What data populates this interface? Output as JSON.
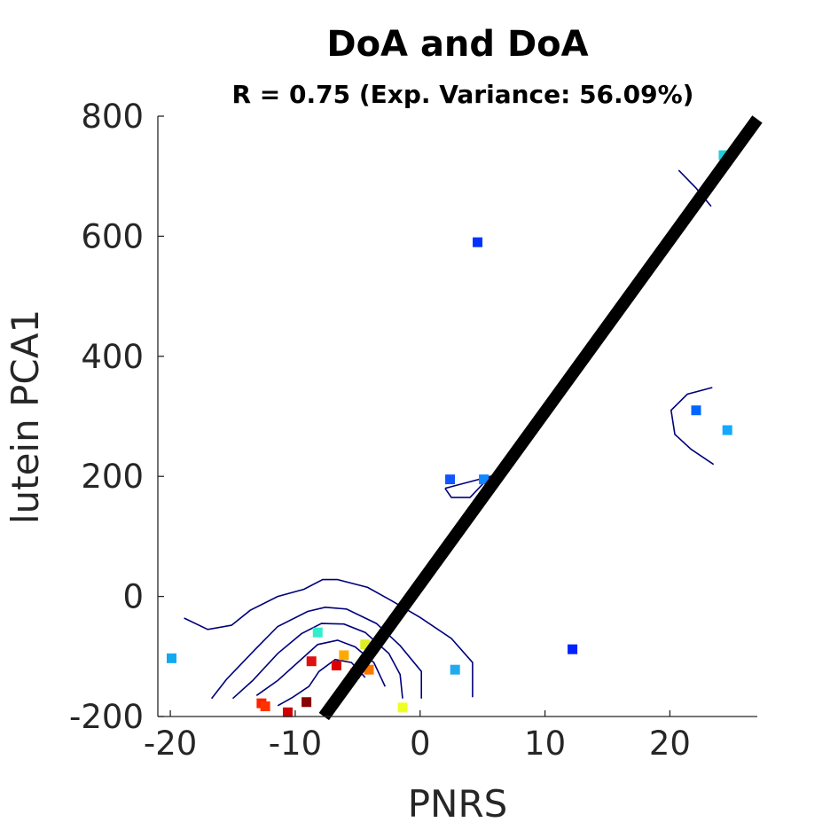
{
  "chart_data": {
    "type": "scatter",
    "title": "DoA and DoA",
    "subtitle": "R = 0.75 (Exp. Variance: 56.09%)",
    "xlabel": "PNRS",
    "ylabel": "lutein PCA1",
    "xlim": [
      -21,
      27
    ],
    "ylim": [
      -200,
      800
    ],
    "xticks": [
      "-20",
      "-10",
      "0",
      "10",
      "20"
    ],
    "xtick_values": [
      -20,
      -10,
      0,
      10,
      20
    ],
    "yticks": [
      "-200",
      "0",
      "200",
      "400",
      "600",
      "800"
    ],
    "ytick_values": [
      -200,
      0,
      200,
      400,
      600,
      800
    ],
    "grid": false,
    "regression_line": {
      "x": [
        -7.7,
        27.0
      ],
      "y": [
        -200,
        795
      ],
      "color": "#000000"
    },
    "points": [
      {
        "x": -19.9,
        "y": -103,
        "color": "#11aaee"
      },
      {
        "x": -12.7,
        "y": -178,
        "color": "#ff2200"
      },
      {
        "x": -12.4,
        "y": -183,
        "color": "#ff3300"
      },
      {
        "x": -10.6,
        "y": -193,
        "color": "#cc0000"
      },
      {
        "x": -9.1,
        "y": -176,
        "color": "#880000"
      },
      {
        "x": -8.7,
        "y": -108,
        "color": "#dd1111"
      },
      {
        "x": -8.2,
        "y": -60,
        "color": "#33eecc"
      },
      {
        "x": -6.7,
        "y": -115,
        "color": "#dd0000"
      },
      {
        "x": -6.1,
        "y": -98,
        "color": "#ffaa00"
      },
      {
        "x": -5.2,
        "y": -128,
        "color": "#ee2200"
      },
      {
        "x": -4.4,
        "y": -80,
        "color": "#ddee22"
      },
      {
        "x": -4.1,
        "y": -122,
        "color": "#ff7700"
      },
      {
        "x": -1.4,
        "y": -185,
        "color": "#eeff22"
      },
      {
        "x": 2.4,
        "y": 195,
        "color": "#1155ff"
      },
      {
        "x": 2.8,
        "y": -122,
        "color": "#22aaee"
      },
      {
        "x": 4.6,
        "y": 590,
        "color": "#0033ff"
      },
      {
        "x": 5.1,
        "y": 195,
        "color": "#1188ff"
      },
      {
        "x": 12.2,
        "y": -88,
        "color": "#0022ff"
      },
      {
        "x": 22.1,
        "y": 310,
        "color": "#0066ff"
      },
      {
        "x": 24.6,
        "y": 277,
        "color": "#11aaff"
      },
      {
        "x": 24.3,
        "y": 735,
        "color": "#22ccdd"
      }
    ],
    "contours": [
      [
        [
          -18.9,
          -36
        ],
        [
          -17.0,
          -55
        ],
        [
          -15.1,
          -48
        ],
        [
          -13.6,
          -23
        ],
        [
          -11.4,
          0
        ],
        [
          -9.3,
          12
        ],
        [
          -7.8,
          28
        ],
        [
          -6.6,
          28
        ],
        [
          -4.2,
          15
        ],
        [
          -2.3,
          -7
        ],
        [
          0.0,
          -35
        ],
        [
          2.5,
          -70
        ],
        [
          4.2,
          -110
        ],
        [
          4.2,
          -168
        ]
      ],
      [
        [
          -16.7,
          -170
        ],
        [
          -15.5,
          -138
        ],
        [
          -13.2,
          -88
        ],
        [
          -11.4,
          -50
        ],
        [
          -9.0,
          -25
        ],
        [
          -7.6,
          -18
        ],
        [
          -5.9,
          -21
        ],
        [
          -3.5,
          -45
        ],
        [
          -1.6,
          -82
        ],
        [
          0.1,
          -125
        ],
        [
          0.1,
          -170
        ]
      ],
      [
        [
          -15.0,
          -170
        ],
        [
          -13.4,
          -140
        ],
        [
          -11.4,
          -95
        ],
        [
          -9.5,
          -62
        ],
        [
          -7.9,
          -45
        ],
        [
          -6.1,
          -46
        ],
        [
          -4.4,
          -60
        ],
        [
          -2.5,
          -95
        ],
        [
          -1.6,
          -130
        ],
        [
          -1.4,
          -170
        ]
      ],
      [
        [
          -13.1,
          -165
        ],
        [
          -11.4,
          -140
        ],
        [
          -9.8,
          -110
        ],
        [
          -8.2,
          -80
        ],
        [
          -6.6,
          -73
        ],
        [
          -5.2,
          -84
        ],
        [
          -3.7,
          -110
        ],
        [
          -2.8,
          -150
        ]
      ],
      [
        [
          -11.4,
          -182
        ],
        [
          -10.2,
          -168
        ],
        [
          -8.9,
          -150
        ],
        [
          -8.1,
          -125
        ],
        [
          -6.8,
          -105
        ],
        [
          -5.5,
          -110
        ],
        [
          -4.4,
          -135
        ]
      ],
      [
        [
          2.0,
          180
        ],
        [
          4.7,
          195
        ],
        [
          5.6,
          200
        ],
        [
          4.0,
          165
        ],
        [
          2.5,
          165
        ],
        [
          2.0,
          180
        ]
      ],
      [
        [
          23.4,
          348
        ],
        [
          21.4,
          337
        ],
        [
          20.1,
          310
        ],
        [
          20.4,
          270
        ],
        [
          21.7,
          245
        ],
        [
          23.5,
          220
        ]
      ],
      [
        [
          20.7,
          710
        ],
        [
          22.1,
          680
        ],
        [
          23.3,
          650
        ]
      ],
      [
        [
          24.3,
          738
        ],
        [
          24.6,
          742
        ]
      ]
    ]
  }
}
